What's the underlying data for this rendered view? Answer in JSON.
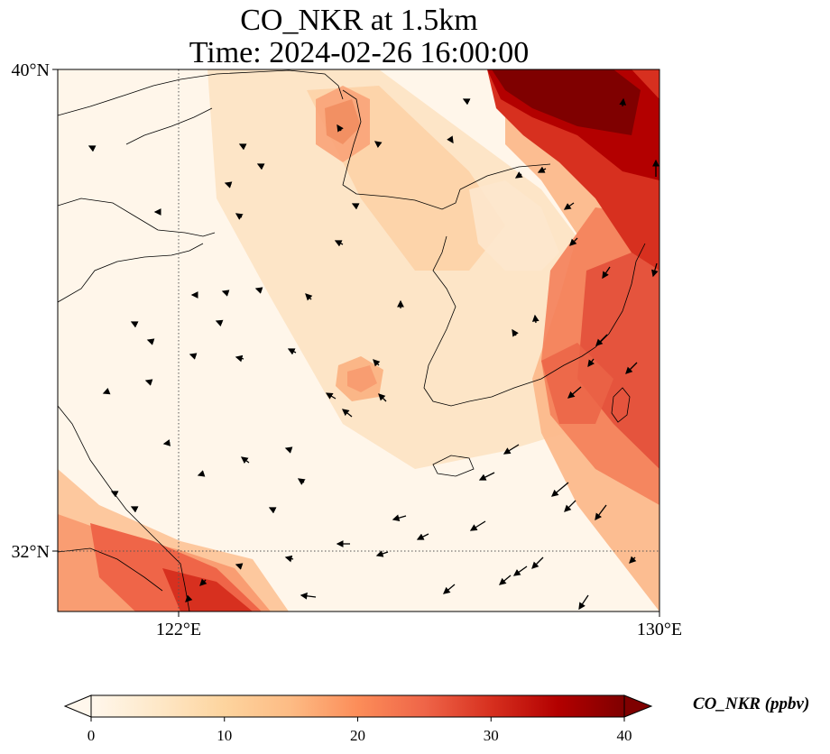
{
  "title": {
    "line1": "CO_NKR at 1.5km",
    "line2": "Time: 2024-02-26 16:00:00"
  },
  "map": {
    "lon_range": [
      120,
      130
    ],
    "lat_range": [
      31,
      40
    ],
    "lon_ticks": [
      {
        "value": 122,
        "label": "122°E"
      },
      {
        "value": 130,
        "label": "130°E"
      }
    ],
    "lat_ticks": [
      {
        "value": 40,
        "label": "40°N"
      },
      {
        "value": 32,
        "label": "32°N"
      }
    ],
    "gridlines": {
      "lon": [
        122
      ],
      "lat": [
        32
      ],
      "style": "dotted"
    },
    "colormap": "OrRd",
    "features": [
      "coastline",
      "wind-vectors",
      "concentration-field"
    ]
  },
  "colorbar": {
    "label": "CO_NKR (ppbv)",
    "min": 0,
    "max": 40,
    "extend": "both",
    "ticks": [
      {
        "value": 0,
        "label": "0"
      },
      {
        "value": 10,
        "label": "10"
      },
      {
        "value": 20,
        "label": "20"
      },
      {
        "value": 30,
        "label": "30"
      },
      {
        "value": 40,
        "label": "40"
      }
    ],
    "colors": [
      "#fff7ec",
      "#fee8c8",
      "#fdd49e",
      "#fdbb84",
      "#fc8d59",
      "#ef6548",
      "#d7301f",
      "#b30000",
      "#7f0000"
    ]
  }
}
